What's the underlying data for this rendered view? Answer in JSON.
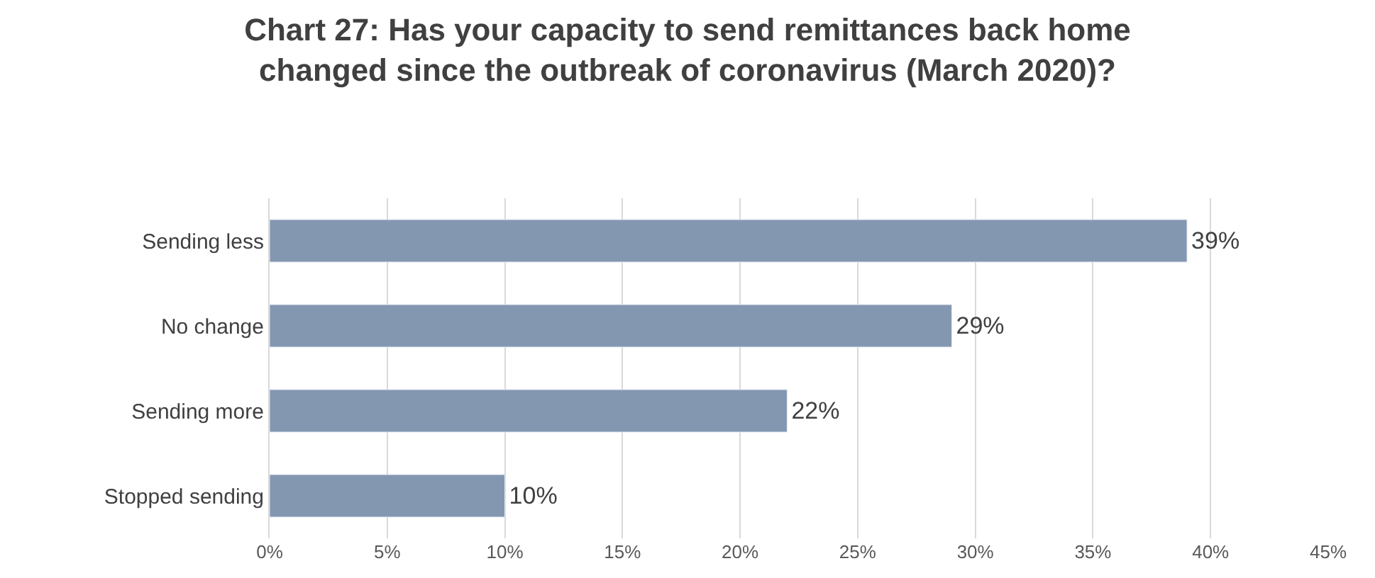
{
  "chart_data": {
    "type": "bar",
    "orientation": "horizontal",
    "title": "Chart 27: Has your capacity to send remittances back home changed since the outbreak of coronavirus (March 2020)?",
    "categories": [
      "Sending less",
      "No change",
      "Sending more",
      "Stopped sending"
    ],
    "values": [
      39,
      29,
      22,
      10
    ],
    "value_labels": [
      "39%",
      "29%",
      "22%",
      "10%"
    ],
    "color": "#8497b0",
    "xlim": [
      0,
      45
    ],
    "xticks": [
      {
        "value": 0,
        "label": "0%"
      },
      {
        "value": 5,
        "label": "5%"
      },
      {
        "value": 10,
        "label": "10%"
      },
      {
        "value": 15,
        "label": "15%"
      },
      {
        "value": 20,
        "label": "20%"
      },
      {
        "value": 25,
        "label": "25%"
      },
      {
        "value": 30,
        "label": "30%"
      },
      {
        "value": 35,
        "label": "35%"
      },
      {
        "value": 40,
        "label": "40%"
      },
      {
        "value": 45,
        "label": "45%"
      }
    ],
    "grid": "x",
    "legend": false
  }
}
